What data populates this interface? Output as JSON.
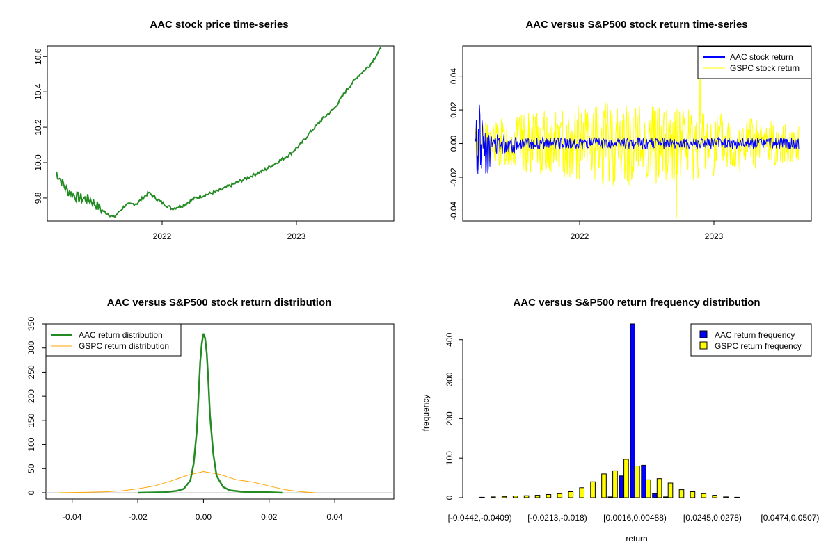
{
  "chart_data": [
    {
      "type": "line",
      "title": "AAC stock price time-series",
      "xlabel": "",
      "ylabel": "",
      "x_ticks": [
        "2022",
        "2023"
      ],
      "ylim": [
        9.67,
        10.66
      ],
      "y_ticks": [
        9.8,
        10.0,
        10.2,
        10.4,
        10.6
      ],
      "x": [
        "2021-04",
        "2021-05",
        "2021-06",
        "2021-07",
        "2021-08",
        "2021-09",
        "2021-10",
        "2021-11",
        "2021-12",
        "2022-01",
        "2022-02",
        "2022-03",
        "2022-04",
        "2022-05",
        "2022-06",
        "2022-07",
        "2022-08",
        "2022-09",
        "2022-10",
        "2022-11",
        "2022-12",
        "2023-01",
        "2023-02",
        "2023-03",
        "2023-04",
        "2023-05",
        "2023-06",
        "2023-07",
        "2023-08"
      ],
      "series": [
        {
          "name": "AAC",
          "color": "#228B22",
          "values": [
            9.95,
            9.84,
            9.8,
            9.79,
            9.73,
            9.69,
            9.76,
            9.77,
            9.83,
            9.78,
            9.74,
            9.76,
            9.8,
            9.82,
            9.84,
            9.87,
            9.9,
            9.93,
            9.96,
            10.0,
            10.04,
            10.1,
            10.18,
            10.25,
            10.31,
            10.41,
            10.49,
            10.55,
            10.65
          ]
        }
      ]
    },
    {
      "type": "line",
      "title": "AAC versus S&P500 stock return time-series",
      "x_ticks": [
        "2022",
        "2023"
      ],
      "ylim": [
        -0.046,
        0.058
      ],
      "y_ticks": [
        -0.04,
        -0.02,
        0.0,
        0.02,
        0.04
      ],
      "series": [
        {
          "name": "AAC stock return",
          "color": "#0000FF"
        },
        {
          "name": "GSPC stock return",
          "color": "#FFFF00"
        }
      ],
      "legend": "top-right"
    },
    {
      "type": "line",
      "title": "AAC versus S&P500 stock return distribution",
      "xlim": [
        -0.048,
        0.058
      ],
      "ylim": [
        0,
        350
      ],
      "x_ticks": [
        -0.04,
        -0.02,
        0.0,
        0.02,
        0.04
      ],
      "y_ticks": [
        0,
        50,
        100,
        150,
        200,
        250,
        300,
        350
      ],
      "series": [
        {
          "name": "AAC return distribution",
          "color": "#228B22",
          "x": [
            -0.02,
            -0.012,
            -0.008,
            -0.006,
            -0.004,
            -0.003,
            -0.002,
            -0.0015,
            -0.001,
            -0.0005,
            0.0,
            0.0005,
            0.001,
            0.0015,
            0.002,
            0.003,
            0.004,
            0.006,
            0.008,
            0.012,
            0.02,
            0.024
          ],
          "y": [
            0,
            1,
            4,
            8,
            25,
            60,
            130,
            200,
            270,
            310,
            330,
            320,
            290,
            230,
            160,
            80,
            35,
            12,
            5,
            2,
            1,
            0
          ]
        },
        {
          "name": "GSPC return distribution",
          "color": "#FFA500",
          "x": [
            -0.044,
            -0.035,
            -0.03,
            -0.025,
            -0.02,
            -0.015,
            -0.01,
            -0.005,
            0.0,
            0.005,
            0.01,
            0.015,
            0.02,
            0.025,
            0.03,
            0.034
          ],
          "y": [
            0,
            1,
            2,
            4,
            8,
            14,
            24,
            36,
            44,
            38,
            27,
            22,
            14,
            6,
            2,
            0
          ]
        }
      ],
      "legend": "top-left"
    },
    {
      "type": "bar",
      "title": "AAC versus S&P500 return frequency distribution",
      "xlabel": "return",
      "ylabel": "frequency",
      "ylim": [
        0,
        440
      ],
      "y_ticks": [
        0,
        100,
        200,
        300,
        400
      ],
      "x_tick_labels": [
        "[-0.0442,-0.0409)",
        "[-0.0213,-0.018)",
        "[0.0016,0.00488)",
        "[0.0245,0.0278)",
        "[0.0474,0.0507)"
      ],
      "x_tick_positions": [
        0,
        7,
        14,
        21,
        28
      ],
      "series": [
        {
          "name": "AAC return frequency",
          "color": "#0000FF",
          "values": [
            0,
            0,
            0,
            0,
            0,
            0,
            0,
            0,
            0,
            0,
            0,
            0,
            2,
            55,
            440,
            82,
            10,
            2,
            0,
            0,
            0,
            0,
            0,
            0,
            0,
            0,
            0,
            0,
            0
          ]
        },
        {
          "name": "GSPC return frequency",
          "color": "#FFFF00",
          "values": [
            1,
            2,
            3,
            4,
            5,
            6,
            8,
            10,
            15,
            25,
            40,
            60,
            68,
            97,
            80,
            45,
            48,
            37,
            20,
            15,
            10,
            6,
            2,
            1,
            0,
            0,
            0,
            0,
            0
          ]
        }
      ],
      "legend": "top-right"
    }
  ]
}
